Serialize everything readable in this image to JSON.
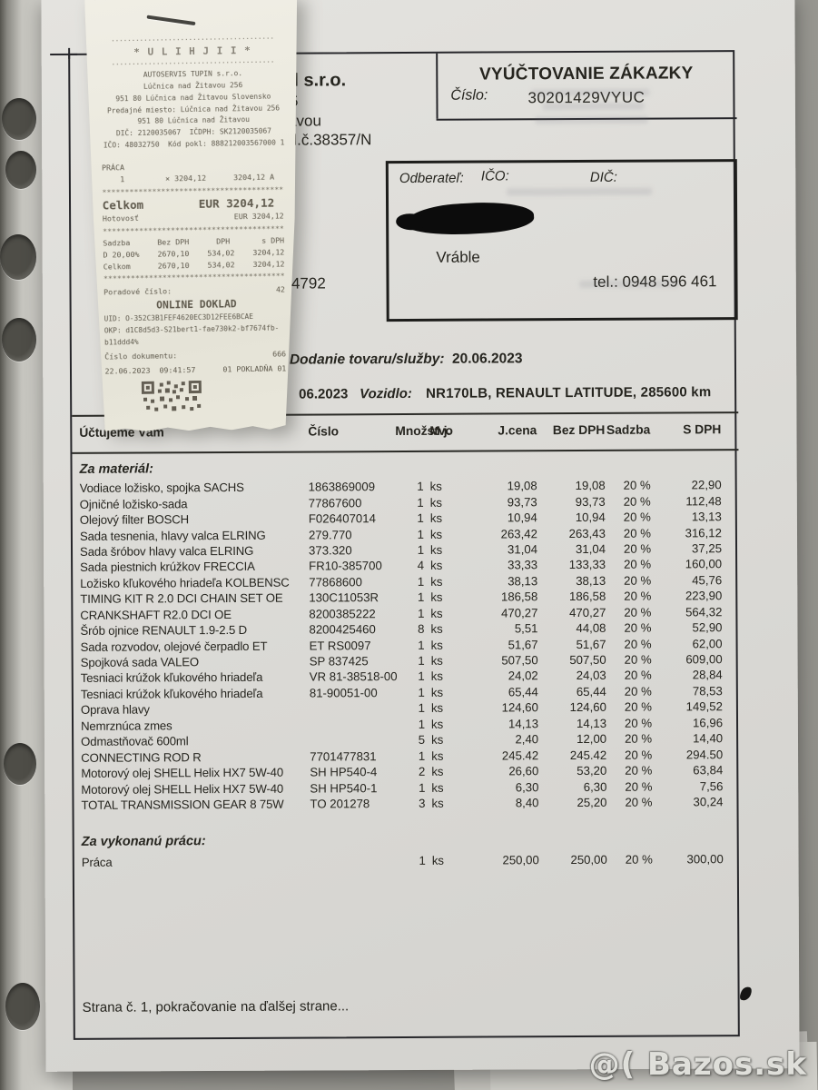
{
  "photo": {
    "watermark": "@( Bazos.sk"
  },
  "receipt": {
    "lines": [
      {
        "c": "deco",
        "t": "········································"
      },
      {
        "c": "logo",
        "t": "* U L I H J I I *"
      },
      {
        "c": "deco",
        "t": "········································"
      },
      {
        "c": "addr",
        "t": "AUTOSERVIS TUPIN s.r.o."
      },
      {
        "c": "addr",
        "t": "Lúčnica nad Žitavou 256"
      },
      {
        "c": "addr",
        "t": "951 80 Lúčnica nad Žitavou Slovensko"
      },
      {
        "c": "addr",
        "t": "Predajné miesto: Lúčnica nad Žitavou 256"
      },
      {
        "c": "addr",
        "t": "951 80 Lúčnica nad Žitavou"
      },
      {
        "c": "addr",
        "t": "DIČ: 2120035067  IČDPH: SK2120035067"
      },
      {
        "c": "addr",
        "t": "IČO: 48032750  Kód pokl: 888212003567000 1"
      },
      {
        "c": "itemh",
        "t": "PRÁCA"
      },
      {
        "c": "item",
        "t": "    1         × 3204,12      3204,12 A"
      },
      {
        "c": "dash",
        "t": "****************************************"
      },
      {
        "c": "big",
        "t": "Celkom        EUR 3204,12"
      },
      {
        "c": "pay",
        "t": "Hotovosť                     EUR 3204,12"
      },
      {
        "c": "dash",
        "t": "****************************************"
      },
      {
        "c": "vrow",
        "t": "Sadzba      Bez DPH      DPH       s DPH"
      },
      {
        "c": "vrow",
        "t": "D 20,00%    2670,10    534,02    3204,12"
      },
      {
        "c": "vrow",
        "t": "Celkom      2670,10    534,02    3204,12"
      },
      {
        "c": "dash",
        "t": "****************************************"
      },
      {
        "c": "ord",
        "t": "Poradové číslo:                       42"
      },
      {
        "c": "onl",
        "t": "ONLINE DOKLAD"
      },
      {
        "c": "uid",
        "t": "UID: O-352C3B1FEF4620EC3D12FEE6BCAE"
      },
      {
        "c": "uid",
        "t": "OKP: d1C8d5d3-S21bert1-fae730k2-bf7674fb-"
      },
      {
        "c": "uid",
        "t": "b11ddd4%"
      },
      {
        "c": "ord",
        "t": "Číslo dokumentu:                     666"
      },
      {
        "c": "dt",
        "t": "22.06.2023  09:41:57      01 POKLADŇA 01"
      }
    ]
  },
  "invoice": {
    "title": "VYÚČTOVANIE ZÁKAZKY",
    "number_label": "Číslo:",
    "number": "30201429VYUC",
    "supplier": {
      "fragment_initial": "D",
      "fragment_name": "l s.r.o.",
      "fragment_line2": "5",
      "fragment_line3": "itavou",
      "fragment_line4": "o vl.č.38357/N",
      "fragment_number": "34792"
    },
    "customer": {
      "label": "Odberateľ:",
      "ico_label": "IČO:",
      "dic_label": "DIČ:",
      "city": "Vráble",
      "phone": "tel.: 0948 596 461"
    },
    "delivery_label": "Dodanie tovaru/služby:",
    "delivery_date": "20.06.2023",
    "issue_date_fragment": "06.2023",
    "vehicle_label": "Vozidlo:",
    "vehicle": "NR170LB, RENAULT LATITUDE, 285600 km",
    "table": {
      "headers": [
        "Účtujeme Vám",
        "Číslo",
        "Množstvo",
        "M.j.",
        "J.cena",
        "Bez DPH",
        "Sadzba",
        "S DPH"
      ],
      "section_material": "Za materiál:",
      "rows": [
        [
          "Vodiace ložisko, spojka SACHS",
          "1863869009",
          "1",
          "ks",
          "19,08",
          "19,08",
          "20 %",
          "22,90"
        ],
        [
          "Ojničné ložisko-sada",
          "77867600",
          "1",
          "ks",
          "93,73",
          "93,73",
          "20 %",
          "112,48"
        ],
        [
          "Olejový filter BOSCH",
          "F026407014",
          "1",
          "ks",
          "10,94",
          "10,94",
          "20 %",
          "13,13"
        ],
        [
          "Sada tesnenia, hlavy valca ELRING",
          "279.770",
          "1",
          "ks",
          "263,42",
          "263,43",
          "20 %",
          "316,12"
        ],
        [
          "Sada šróbov hlavy valca ELRING",
          "373.320",
          "1",
          "ks",
          "31,04",
          "31,04",
          "20 %",
          "37,25"
        ],
        [
          "Sada piestnich krúžkov FRECCIA",
          "FR10-385700",
          "4",
          "ks",
          "33,33",
          "133,33",
          "20 %",
          "160,00"
        ],
        [
          "Ložisko kľukového hriadeľa KOLBENSC",
          "77868600",
          "1",
          "ks",
          "38,13",
          "38,13",
          "20 %",
          "45,76"
        ],
        [
          "TIMING KIT R 2.0 DCI CHAIN SET OE",
          "130C11053R",
          "1",
          "ks",
          "186,58",
          "186,58",
          "20 %",
          "223,90"
        ],
        [
          "CRANKSHAFT R2.0 DCI OE",
          "8200385222",
          "1",
          "ks",
          "470,27",
          "470,27",
          "20 %",
          "564,32"
        ],
        [
          "Šrób ojnice RENAULT 1.9-2.5 D",
          "8200425460",
          "8",
          "ks",
          "5,51",
          "44,08",
          "20 %",
          "52,90"
        ],
        [
          "Sada rozvodov, olejové čerpadlo ET",
          "ET RS0097",
          "1",
          "ks",
          "51,67",
          "51,67",
          "20 %",
          "62,00"
        ],
        [
          "Spojková sada VALEO",
          "SP 837425",
          "1",
          "ks",
          "507,50",
          "507,50",
          "20 %",
          "609,00"
        ],
        [
          "Tesniaci krúžok kľukového hriadeľa",
          "VR 81-38518-00",
          "1",
          "ks",
          "24,02",
          "24,03",
          "20 %",
          "28,84"
        ],
        [
          "Tesniaci krúžok kľukového hriadeľa",
          "81-90051-00",
          "1",
          "ks",
          "65,44",
          "65,44",
          "20 %",
          "78,53"
        ],
        [
          "Oprava hlavy",
          "",
          "1",
          "ks",
          "124,60",
          "124,60",
          "20 %",
          "149,52"
        ],
        [
          "Nemrznúca zmes",
          "",
          "1",
          "ks",
          "14,13",
          "14,13",
          "20 %",
          "16,96"
        ],
        [
          "Odmastňovač 600ml",
          "",
          "5",
          "ks",
          "2,40",
          "12,00",
          "20 %",
          "14,40"
        ],
        [
          "CONNECTING ROD R",
          "7701477831",
          "1",
          "ks",
          "245.42",
          "245.42",
          "20 %",
          "294.50"
        ],
        [
          "Motorový olej SHELL Helix HX7 5W-40",
          "SH HP540-4",
          "2",
          "ks",
          "26,60",
          "53,20",
          "20 %",
          "63,84"
        ],
        [
          "Motorový olej SHELL Helix HX7 5W-40",
          "SH HP540-1",
          "1",
          "ks",
          "6,30",
          "6,30",
          "20 %",
          "7,56"
        ],
        [
          "TOTAL TRANSMISSION GEAR 8 75W",
          "TO 201278",
          "3",
          "ks",
          "8,40",
          "25,20",
          "20 %",
          "30,24"
        ]
      ],
      "section_labor": "Za vykonanú prácu:",
      "labor_rows": [
        [
          "Práca",
          "",
          "1",
          "ks",
          "250,00",
          "250,00",
          "20 %",
          "300,00"
        ]
      ]
    },
    "footer": "Strana č. 1, pokračovanie na ďalšej strane..."
  }
}
